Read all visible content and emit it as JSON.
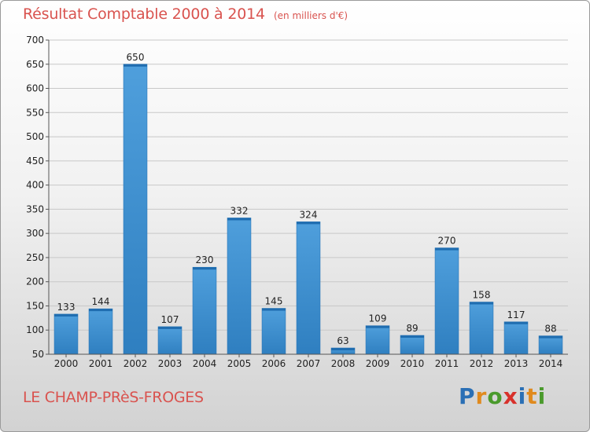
{
  "header": {
    "title": "Résultat Comptable 2000 à 2014",
    "unit": "(en milliers d'€)"
  },
  "footer": {
    "commune": "LE CHAMP-PRèS-FROGES",
    "brand_letters": [
      "P",
      "r",
      "o",
      "x",
      "i",
      "t",
      "i"
    ],
    "brand_colors": [
      "#2a6fb5",
      "#e08a1e",
      "#4a9a2c",
      "#d8312b",
      "#2a6fb5",
      "#e08a1e",
      "#4a9a2c"
    ]
  },
  "colors": {
    "bar": "#4f9fdc",
    "bar_dark": "#2f7fc0",
    "grid": "#c8c8c8",
    "title": "#d9534f"
  },
  "chart_data": {
    "type": "bar",
    "title": "Résultat Comptable 2000 à 2014",
    "xlabel": "",
    "ylabel": "",
    "categories": [
      "2000",
      "2001",
      "2002",
      "2003",
      "2004",
      "2005",
      "2006",
      "2007",
      "2008",
      "2009",
      "2010",
      "2011",
      "2012",
      "2013",
      "2014"
    ],
    "values": [
      133,
      144,
      650,
      107,
      230,
      332,
      145,
      324,
      63,
      109,
      89,
      270,
      158,
      117,
      88
    ],
    "ylim": [
      50,
      700
    ],
    "yticks": [
      50,
      100,
      150,
      200,
      250,
      300,
      350,
      400,
      450,
      500,
      550,
      600,
      650,
      700
    ],
    "grid": true
  }
}
